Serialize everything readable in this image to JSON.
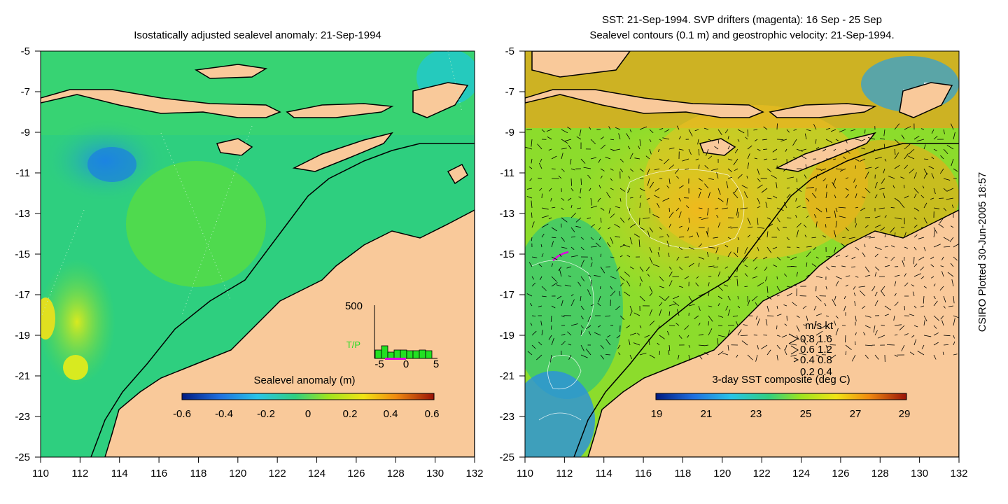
{
  "left_panel": {
    "title": "Isostatically adjusted sealevel anomaly: 21-Sep-1994",
    "colorbar_title": "Sealevel anomaly (m)",
    "colorbar_ticks": [
      "-0.6",
      "-0.4",
      "-0.2",
      "0",
      "0.2",
      "0.4",
      "0.6"
    ],
    "inset": {
      "y_label": "500",
      "series_label": "T/P",
      "x_ticks": [
        "-5",
        "0",
        "5"
      ]
    }
  },
  "right_panel": {
    "title_line1": "SST: 21-Sep-1994. SVP drifters (magenta): 16 Sep - 25 Sep",
    "title_line2": "Sealevel contours (0.1 m) and geostrophic velocity: 21-Sep-1994.",
    "colorbar_title": "3-day SST composite (deg C)",
    "colorbar_ticks": [
      "19",
      "21",
      "23",
      "25",
      "27",
      "29"
    ],
    "velocity_legend": {
      "header": "m/s  kt",
      "rows": [
        "0.8  1.6",
        "0.6  1.2",
        "0.4  0.8",
        "0.2  0.4"
      ]
    }
  },
  "axes": {
    "y_ticks": [
      "-5",
      "-7",
      "-9",
      "-11",
      "-13",
      "-15",
      "-17",
      "-19",
      "-21",
      "-23",
      "-25"
    ],
    "x_ticks": [
      "110",
      "112",
      "114",
      "116",
      "118",
      "120",
      "122",
      "124",
      "126",
      "128",
      "130",
      "132"
    ]
  },
  "side_label": "CSIRO Plotted 30-Jun-2005 18:57",
  "colors": {
    "land": "#f9c99a",
    "sea_left": "#2ecf7f",
    "sea_right": "#6fd94a"
  }
}
